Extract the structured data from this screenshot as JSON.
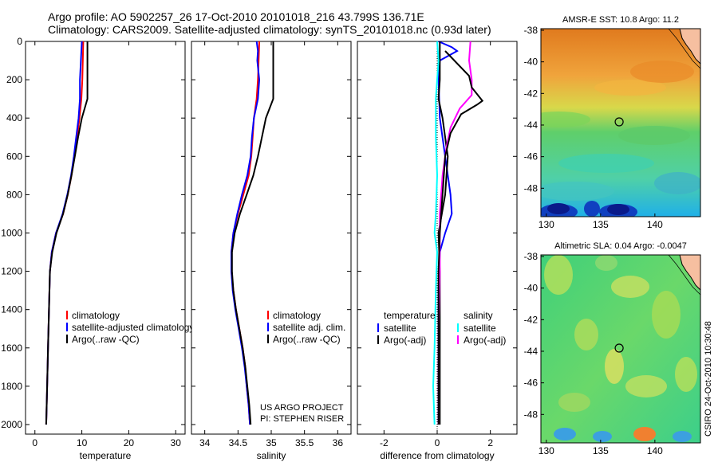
{
  "header": {
    "line1": "Argo profile: AO 5902257_26 17-Oct-2010 20101018_216 43.799S 136.71E",
    "line2": "Climatology: CARS2009. Satellite-adjusted climatology: synTS_20101018.nc (0.93d later)"
  },
  "side_label": "CSIRO 24-Oct-2010 10:30:48",
  "project_note": [
    "US ARGO PROJECT",
    "PI: STEPHEN RISER"
  ],
  "colors": {
    "climatology": "#ff0000",
    "satellite": "#0000ff",
    "argo": "#000000",
    "sat_salinity": "#00ffff",
    "argo_salinity": "#ff00ff"
  },
  "chart_data": [
    {
      "type": "line",
      "xlabel": "temperature",
      "xlim": [
        -2,
        32
      ],
      "ylim": [
        0,
        2050
      ],
      "y_reversed": true,
      "xticks": [
        0,
        10,
        20,
        30
      ],
      "yticks": [
        0,
        200,
        400,
        600,
        800,
        1000,
        1200,
        1400,
        1600,
        1800,
        2000
      ],
      "legend": [
        "climatology",
        "satellite-adjusted climatology",
        "Argo(..raw -QC)"
      ],
      "series": [
        {
          "name": "climatology",
          "color": "#ff0000",
          "width": 2,
          "points": [
            [
              10.3,
              0
            ],
            [
              10.2,
              100
            ],
            [
              10.1,
              200
            ],
            [
              9.9,
              300
            ],
            [
              9.5,
              400
            ],
            [
              9.0,
              500
            ],
            [
              8.4,
              600
            ],
            [
              7.8,
              700
            ],
            [
              7.0,
              800
            ],
            [
              6.0,
              900
            ],
            [
              4.5,
              1000
            ],
            [
              3.6,
              1100
            ],
            [
              3.2,
              1200
            ],
            [
              3.0,
              1400
            ],
            [
              2.8,
              1600
            ],
            [
              2.6,
              1800
            ],
            [
              2.4,
              2000
            ]
          ]
        },
        {
          "name": "satellite-adjusted climatology",
          "color": "#0000ff",
          "width": 2,
          "points": [
            [
              10.0,
              0
            ],
            [
              9.8,
              100
            ],
            [
              9.6,
              200
            ],
            [
              9.6,
              300
            ],
            [
              9.3,
              400
            ],
            [
              8.8,
              500
            ],
            [
              8.3,
              600
            ],
            [
              7.7,
              700
            ],
            [
              6.9,
              800
            ],
            [
              5.9,
              900
            ],
            [
              4.5,
              1000
            ],
            [
              3.6,
              1100
            ],
            [
              3.2,
              1200
            ],
            [
              3.0,
              1400
            ],
            [
              2.8,
              1600
            ],
            [
              2.6,
              1800
            ],
            [
              2.4,
              2000
            ]
          ]
        },
        {
          "name": "Argo(..raw -QC)",
          "color": "#000000",
          "width": 2,
          "points": [
            [
              11.2,
              0
            ],
            [
              11.2,
              100
            ],
            [
              11.2,
              200
            ],
            [
              11.2,
              300
            ],
            [
              10.0,
              400
            ],
            [
              9.2,
              500
            ],
            [
              8.5,
              600
            ],
            [
              7.8,
              700
            ],
            [
              7.0,
              800
            ],
            [
              6.0,
              900
            ],
            [
              4.6,
              1000
            ],
            [
              3.7,
              1100
            ],
            [
              3.2,
              1200
            ],
            [
              3.0,
              1400
            ],
            [
              2.8,
              1600
            ],
            [
              2.6,
              1800
            ],
            [
              2.4,
              2000
            ]
          ]
        }
      ]
    },
    {
      "type": "line",
      "xlabel": "salinity",
      "xlim": [
        33.8,
        36.2
      ],
      "ylim": [
        0,
        2050
      ],
      "y_reversed": true,
      "xticks": [
        34,
        34.5,
        35,
        35.5,
        36
      ],
      "legend": [
        "climatology",
        "satellite adj. clim.",
        "Argo(..raw -QC)"
      ],
      "series": [
        {
          "name": "climatology",
          "color": "#ff0000",
          "width": 2,
          "points": [
            [
              34.82,
              0
            ],
            [
              34.81,
              100
            ],
            [
              34.8,
              200
            ],
            [
              34.78,
              300
            ],
            [
              34.74,
              400
            ],
            [
              34.72,
              500
            ],
            [
              34.7,
              600
            ],
            [
              34.66,
              700
            ],
            [
              34.58,
              800
            ],
            [
              34.5,
              900
            ],
            [
              34.43,
              1000
            ],
            [
              34.4,
              1100
            ],
            [
              34.4,
              1200
            ],
            [
              34.43,
              1300
            ],
            [
              34.47,
              1400
            ],
            [
              34.52,
              1500
            ],
            [
              34.57,
              1600
            ],
            [
              34.61,
              1700
            ],
            [
              34.63,
              1800
            ],
            [
              34.66,
              1900
            ],
            [
              34.68,
              2000
            ]
          ]
        },
        {
          "name": "satellite adj. clim.",
          "color": "#0000ff",
          "width": 2,
          "points": [
            [
              34.78,
              0
            ],
            [
              34.8,
              50
            ],
            [
              34.79,
              100
            ],
            [
              34.82,
              200
            ],
            [
              34.8,
              300
            ],
            [
              34.74,
              400
            ],
            [
              34.71,
              500
            ],
            [
              34.69,
              600
            ],
            [
              34.64,
              700
            ],
            [
              34.56,
              800
            ],
            [
              34.49,
              900
            ],
            [
              34.43,
              1000
            ],
            [
              34.4,
              1100
            ],
            [
              34.4,
              1200
            ],
            [
              34.42,
              1300
            ],
            [
              34.46,
              1400
            ],
            [
              34.51,
              1500
            ],
            [
              34.56,
              1600
            ],
            [
              34.6,
              1700
            ],
            [
              34.63,
              1800
            ],
            [
              34.66,
              1900
            ],
            [
              34.68,
              2000
            ]
          ]
        },
        {
          "name": "Argo(..raw -QC)",
          "color": "#000000",
          "width": 2,
          "points": [
            [
              35.03,
              0
            ],
            [
              35.03,
              100
            ],
            [
              35.03,
              200
            ],
            [
              35.03,
              300
            ],
            [
              34.92,
              400
            ],
            [
              34.86,
              500
            ],
            [
              34.8,
              600
            ],
            [
              34.73,
              700
            ],
            [
              34.63,
              800
            ],
            [
              34.53,
              900
            ],
            [
              34.45,
              1000
            ],
            [
              34.41,
              1100
            ],
            [
              34.41,
              1200
            ],
            [
              34.43,
              1300
            ],
            [
              34.47,
              1400
            ],
            [
              34.52,
              1500
            ],
            [
              34.57,
              1600
            ],
            [
              34.61,
              1700
            ],
            [
              34.64,
              1800
            ],
            [
              34.67,
              1900
            ],
            [
              34.69,
              2000
            ]
          ]
        }
      ]
    },
    {
      "type": "line",
      "xlabel": "difference from climatology",
      "xlim": [
        -3,
        3
      ],
      "ylim": [
        0,
        2050
      ],
      "y_reversed": true,
      "xticks": [
        -2,
        0,
        2
      ],
      "legend_groups": [
        {
          "heading": "temperature",
          "items": [
            "satellite",
            "Argo(-adj)"
          ]
        },
        {
          "heading": "salinity",
          "items": [
            "satellite",
            "Argo(-adj)"
          ]
        }
      ],
      "series": [
        {
          "name": "temperature satellite",
          "color": "#0000ff",
          "width": 2,
          "points": [
            [
              0.05,
              0
            ],
            [
              0.55,
              30
            ],
            [
              0.75,
              50
            ],
            [
              0.1,
              100
            ],
            [
              0.05,
              200
            ],
            [
              0.1,
              400
            ],
            [
              0.3,
              600
            ],
            [
              0.5,
              800
            ],
            [
              0.55,
              900
            ],
            [
              0.3,
              1000
            ],
            [
              0.1,
              1100
            ],
            [
              0.05,
              1300
            ],
            [
              0.05,
              2000
            ]
          ]
        },
        {
          "name": "temperature Argo(-adj)",
          "color": "#000000",
          "width": 2,
          "points": [
            [
              0.1,
              0
            ],
            [
              0.1,
              100
            ],
            [
              0.1,
              200
            ],
            [
              0.05,
              300
            ],
            [
              0.2,
              400
            ],
            [
              0.4,
              600
            ],
            [
              0.3,
              800
            ],
            [
              0.05,
              1000
            ],
            [
              0.1,
              1200
            ],
            [
              0.1,
              2000
            ]
          ]
        },
        {
          "name": "salinity satellite",
          "color": "#00ffff",
          "width": 2,
          "points": [
            [
              0.0,
              0
            ],
            [
              0.05,
              100
            ],
            [
              -0.05,
              300
            ],
            [
              -0.05,
              500
            ],
            [
              0.0,
              700
            ],
            [
              -0.05,
              900
            ],
            [
              -0.1,
              1000
            ],
            [
              0.0,
              1100
            ],
            [
              -0.05,
              1300
            ],
            [
              -0.1,
              1600
            ],
            [
              -0.15,
              1800
            ],
            [
              -0.1,
              2000
            ]
          ]
        },
        {
          "name": "salinity Argo(-adj)",
          "color": "#ff00ff",
          "width": 2,
          "points": [
            [
              1.25,
              0
            ],
            [
              1.2,
              100
            ],
            [
              1.3,
              200
            ],
            [
              1.3,
              280
            ],
            [
              0.85,
              350
            ],
            [
              0.5,
              450
            ],
            [
              0.35,
              550
            ],
            [
              0.2,
              700
            ],
            [
              0.1,
              900
            ],
            [
              0.1,
              1200
            ],
            [
              0.05,
              1500
            ],
            [
              0.05,
              2000
            ]
          ]
        },
        {
          "name": "Argo total",
          "color": "#000000",
          "width": 2,
          "points": [
            [
              0.3,
              50
            ],
            [
              1.2,
              180
            ],
            [
              1.3,
              240
            ],
            [
              1.7,
              310
            ],
            [
              1.5,
              330
            ],
            [
              0.9,
              380
            ],
            [
              0.5,
              480
            ],
            [
              0.3,
              600
            ],
            [
              0.2,
              800
            ],
            [
              0.1,
              1000
            ],
            [
              0.05,
              1200
            ],
            [
              0.05,
              2000
            ]
          ]
        }
      ]
    },
    {
      "type": "heatmap",
      "title": "AMSR-E SST: 10.8 Argo: 11.2",
      "xticks": [
        130,
        135,
        140
      ],
      "yticks": [
        -38,
        -40,
        -42,
        -44,
        -46,
        -48
      ],
      "xlim": [
        129.5,
        144.2
      ],
      "ylim": [
        -49.8,
        -37.9
      ],
      "marker": [
        136.71,
        -43.799
      ]
    },
    {
      "type": "heatmap",
      "title": "Altimetric SLA: 0.04 Argo: -0.0047",
      "xticks": [
        130,
        135,
        140
      ],
      "yticks": [
        -38,
        -40,
        -42,
        -44,
        -46,
        -48
      ],
      "xlim": [
        129.5,
        144.2
      ],
      "ylim": [
        -49.8,
        -37.9
      ],
      "marker": [
        136.71,
        -43.799
      ]
    }
  ]
}
